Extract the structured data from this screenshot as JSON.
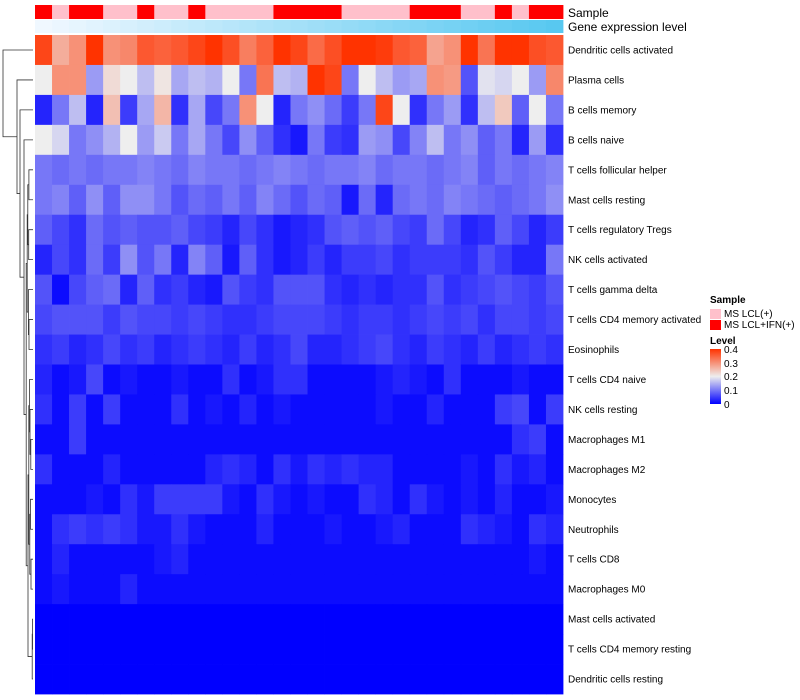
{
  "chart_data": {
    "type": "heatmap",
    "annotation_labels": [
      "Sample",
      "Gene expression level"
    ],
    "sample_groups": [
      "MS LCL(+)",
      "MS LCL+IFN(+)"
    ],
    "sample_group_colors": [
      "#ffc0cb",
      "#ff0000"
    ],
    "sample_annotation": [
      1,
      0,
      1,
      1,
      0,
      0,
      1,
      0,
      0,
      1,
      0,
      0,
      0,
      0,
      1,
      1,
      1,
      1,
      0,
      0,
      0,
      0,
      1,
      1,
      1,
      0,
      0,
      1,
      0,
      1,
      1
    ],
    "rows": [
      "Dendritic cells activated",
      "Plasma cells",
      "B cells memory",
      "B cells naive",
      "T cells follicular helper",
      "Mast cells resting",
      "T cells regulatory  Tregs",
      "NK cells activated",
      "T cells gamma delta",
      "T cells CD4 memory activated",
      "Eosinophils",
      "T cells CD4 naive",
      "NK cells resting",
      "Macrophages M1",
      "Macrophages M2",
      "Monocytes",
      "Neutrophils",
      "T cells CD8",
      "Macrophages M0",
      "Mast cells activated",
      "T cells CD4 memory resting",
      "Dendritic cells resting"
    ],
    "values": [
      [
        0.38,
        0.27,
        0.3,
        0.4,
        0.3,
        0.31,
        0.36,
        0.35,
        0.36,
        0.38,
        0.4,
        0.37,
        0.32,
        0.35,
        0.4,
        0.38,
        0.34,
        0.37,
        0.4,
        0.4,
        0.39,
        0.36,
        0.35,
        0.28,
        0.3,
        0.4,
        0.33,
        0.4,
        0.4,
        0.37,
        0.36
      ],
      [
        0.2,
        0.3,
        0.3,
        0.13,
        0.22,
        0.2,
        0.16,
        0.21,
        0.14,
        0.16,
        0.15,
        0.2,
        0.1,
        0.33,
        0.16,
        0.15,
        0.4,
        0.38,
        0.1,
        0.2,
        0.16,
        0.13,
        0.14,
        0.3,
        0.29,
        0.07,
        0.19,
        0.18,
        0.2,
        0.13,
        0.31
      ],
      [
        0.03,
        0.1,
        0.16,
        0.03,
        0.25,
        0.05,
        0.14,
        0.26,
        0.04,
        0.14,
        0.06,
        0.1,
        0.3,
        0.2,
        0.03,
        0.1,
        0.12,
        0.09,
        0.05,
        0.1,
        0.38,
        0.2,
        0.04,
        0.1,
        0.13,
        0.04,
        0.16,
        0.24,
        0.08,
        0.2,
        0.1
      ],
      [
        0.2,
        0.18,
        0.1,
        0.12,
        0.15,
        0.2,
        0.13,
        0.17,
        0.1,
        0.14,
        0.1,
        0.06,
        0.12,
        0.08,
        0.04,
        0.02,
        0.1,
        0.05,
        0.04,
        0.13,
        0.12,
        0.06,
        0.11,
        0.16,
        0.1,
        0.12,
        0.08,
        0.1,
        0.03,
        0.13,
        0.04
      ],
      [
        0.1,
        0.09,
        0.1,
        0.09,
        0.1,
        0.1,
        0.11,
        0.1,
        0.09,
        0.11,
        0.1,
        0.1,
        0.09,
        0.1,
        0.11,
        0.1,
        0.09,
        0.1,
        0.1,
        0.11,
        0.09,
        0.1,
        0.1,
        0.09,
        0.1,
        0.11,
        0.08,
        0.1,
        0.09,
        0.1,
        0.11
      ],
      [
        0.1,
        0.11,
        0.08,
        0.12,
        0.08,
        0.12,
        0.12,
        0.1,
        0.07,
        0.09,
        0.08,
        0.1,
        0.08,
        0.11,
        0.09,
        0.07,
        0.09,
        0.08,
        0.02,
        0.09,
        0.03,
        0.09,
        0.1,
        0.09,
        0.11,
        0.1,
        0.09,
        0.08,
        0.09,
        0.1,
        0.12
      ],
      [
        0.08,
        0.06,
        0.04,
        0.09,
        0.07,
        0.08,
        0.07,
        0.07,
        0.08,
        0.06,
        0.05,
        0.03,
        0.06,
        0.04,
        0.02,
        0.03,
        0.04,
        0.07,
        0.08,
        0.07,
        0.08,
        0.06,
        0.05,
        0.09,
        0.06,
        0.03,
        0.04,
        0.08,
        0.06,
        0.03,
        0.05
      ],
      [
        0.03,
        0.06,
        0.04,
        0.09,
        0.05,
        0.12,
        0.07,
        0.1,
        0.03,
        0.11,
        0.08,
        0.02,
        0.08,
        0.04,
        0.02,
        0.03,
        0.05,
        0.03,
        0.05,
        0.05,
        0.06,
        0.04,
        0.05,
        0.05,
        0.05,
        0.04,
        0.07,
        0.05,
        0.03,
        0.03,
        0.1
      ],
      [
        0.07,
        0.01,
        0.06,
        0.08,
        0.09,
        0.03,
        0.08,
        0.04,
        0.05,
        0.03,
        0.02,
        0.07,
        0.05,
        0.04,
        0.07,
        0.07,
        0.07,
        0.04,
        0.03,
        0.04,
        0.03,
        0.04,
        0.04,
        0.07,
        0.04,
        0.05,
        0.06,
        0.07,
        0.06,
        0.05,
        0.07
      ],
      [
        0.06,
        0.07,
        0.07,
        0.07,
        0.05,
        0.07,
        0.06,
        0.06,
        0.05,
        0.06,
        0.05,
        0.04,
        0.04,
        0.05,
        0.06,
        0.06,
        0.06,
        0.05,
        0.04,
        0.05,
        0.05,
        0.04,
        0.05,
        0.06,
        0.05,
        0.06,
        0.04,
        0.06,
        0.06,
        0.05,
        0.06
      ],
      [
        0.04,
        0.05,
        0.03,
        0.04,
        0.06,
        0.04,
        0.05,
        0.03,
        0.04,
        0.05,
        0.04,
        0.03,
        0.05,
        0.03,
        0.04,
        0.06,
        0.03,
        0.03,
        0.04,
        0.05,
        0.06,
        0.04,
        0.03,
        0.05,
        0.04,
        0.03,
        0.05,
        0.03,
        0.04,
        0.05,
        0.04
      ],
      [
        0.03,
        0.01,
        0.02,
        0.06,
        0.01,
        0.02,
        0.01,
        0.01,
        0.02,
        0.01,
        0.01,
        0.04,
        0.01,
        0.02,
        0.04,
        0.04,
        0.01,
        0.01,
        0.01,
        0.01,
        0.02,
        0.03,
        0.02,
        0.01,
        0.04,
        0.01,
        0.01,
        0.01,
        0.02,
        0.01,
        0.01
      ],
      [
        0.04,
        0.01,
        0.05,
        0.01,
        0.05,
        0.01,
        0.01,
        0.01,
        0.04,
        0.01,
        0.02,
        0.01,
        0.03,
        0.01,
        0.02,
        0.01,
        0.01,
        0.01,
        0.01,
        0.01,
        0.02,
        0.01,
        0.01,
        0.03,
        0.01,
        0.01,
        0.01,
        0.05,
        0.06,
        0.01,
        0.05
      ],
      [
        0.01,
        0.01,
        0.05,
        0.01,
        0.01,
        0.01,
        0.01,
        0.01,
        0.01,
        0.01,
        0.01,
        0.01,
        0.01,
        0.01,
        0.01,
        0.01,
        0.01,
        0.01,
        0.01,
        0.01,
        0.01,
        0.01,
        0.01,
        0.01,
        0.01,
        0.01,
        0.01,
        0.01,
        0.04,
        0.05,
        0.01
      ],
      [
        0.04,
        0.01,
        0.01,
        0.01,
        0.03,
        0.01,
        0.01,
        0.01,
        0.01,
        0.01,
        0.03,
        0.04,
        0.03,
        0.01,
        0.04,
        0.02,
        0.04,
        0.03,
        0.04,
        0.03,
        0.03,
        0.01,
        0.01,
        0.01,
        0.01,
        0.02,
        0.01,
        0.04,
        0.02,
        0.03,
        0.01
      ],
      [
        0.01,
        0.01,
        0.01,
        0.02,
        0.01,
        0.04,
        0.02,
        0.05,
        0.05,
        0.05,
        0.05,
        0.02,
        0.01,
        0.04,
        0.02,
        0.01,
        0.02,
        0.01,
        0.01,
        0.04,
        0.03,
        0.01,
        0.04,
        0.02,
        0.01,
        0.02,
        0.01,
        0.03,
        0.01,
        0.01,
        0.02
      ],
      [
        0.01,
        0.04,
        0.05,
        0.04,
        0.05,
        0.04,
        0.02,
        0.02,
        0.04,
        0.02,
        0.01,
        0.01,
        0.01,
        0.03,
        0.01,
        0.01,
        0.01,
        0.02,
        0.01,
        0.01,
        0.02,
        0.03,
        0.01,
        0.01,
        0.01,
        0.04,
        0.03,
        0.02,
        0.01,
        0.04,
        0.03
      ],
      [
        0.01,
        0.03,
        0.01,
        0.01,
        0.01,
        0.01,
        0.01,
        0.02,
        0.03,
        0.01,
        0.01,
        0.01,
        0.01,
        0.01,
        0.01,
        0.01,
        0.01,
        0.01,
        0.01,
        0.01,
        0.01,
        0.01,
        0.01,
        0.01,
        0.01,
        0.01,
        0.01,
        0.01,
        0.01,
        0.02,
        0.01
      ],
      [
        0.01,
        0.02,
        0.01,
        0.01,
        0.01,
        0.03,
        0.01,
        0.01,
        0.01,
        0.01,
        0.01,
        0.01,
        0.01,
        0.01,
        0.01,
        0.01,
        0.01,
        0.01,
        0.01,
        0.01,
        0.01,
        0.01,
        0.01,
        0.01,
        0.01,
        0.01,
        0.01,
        0.01,
        0.01,
        0.01,
        0.01
      ],
      [
        0.0,
        0.0,
        0.0,
        0.0,
        0.0,
        0.0,
        0.0,
        0.0,
        0.0,
        0.0,
        0.0,
        0.0,
        0.0,
        0.0,
        0.0,
        0.0,
        0.0,
        0.0,
        0.0,
        0.0,
        0.0,
        0.0,
        0.0,
        0.0,
        0.0,
        0.0,
        0.0,
        0.0,
        0.0,
        0.0,
        0.0
      ],
      [
        0.0,
        0.0,
        0.0,
        0.0,
        0.0,
        0.0,
        0.0,
        0.0,
        0.0,
        0.0,
        0.0,
        0.0,
        0.0,
        0.0,
        0.0,
        0.0,
        0.0,
        0.0,
        0.0,
        0.0,
        0.0,
        0.0,
        0.0,
        0.0,
        0.0,
        0.0,
        0.0,
        0.0,
        0.0,
        0.0,
        0.0
      ],
      [
        0.0,
        0.0,
        0.0,
        0.0,
        0.0,
        0.0,
        0.0,
        0.0,
        0.0,
        0.0,
        0.0,
        0.0,
        0.0,
        0.0,
        0.0,
        0.0,
        0.0,
        0.0,
        0.0,
        0.0,
        0.0,
        0.0,
        0.0,
        0.0,
        0.0,
        0.0,
        0.0,
        0.0,
        0.0,
        0.0,
        0.0
      ]
    ],
    "color_scale": {
      "min": 0,
      "mid": 0.2,
      "max": 0.4,
      "low": "#0000ff",
      "midColor": "#eeeeee",
      "high": "#ff3300"
    },
    "legend": {
      "sample_title": "Sample",
      "level_title": "Level",
      "level_ticks": [
        "0.4",
        "0.3",
        "0.2",
        "0.1",
        "0"
      ],
      "position": "right"
    }
  }
}
